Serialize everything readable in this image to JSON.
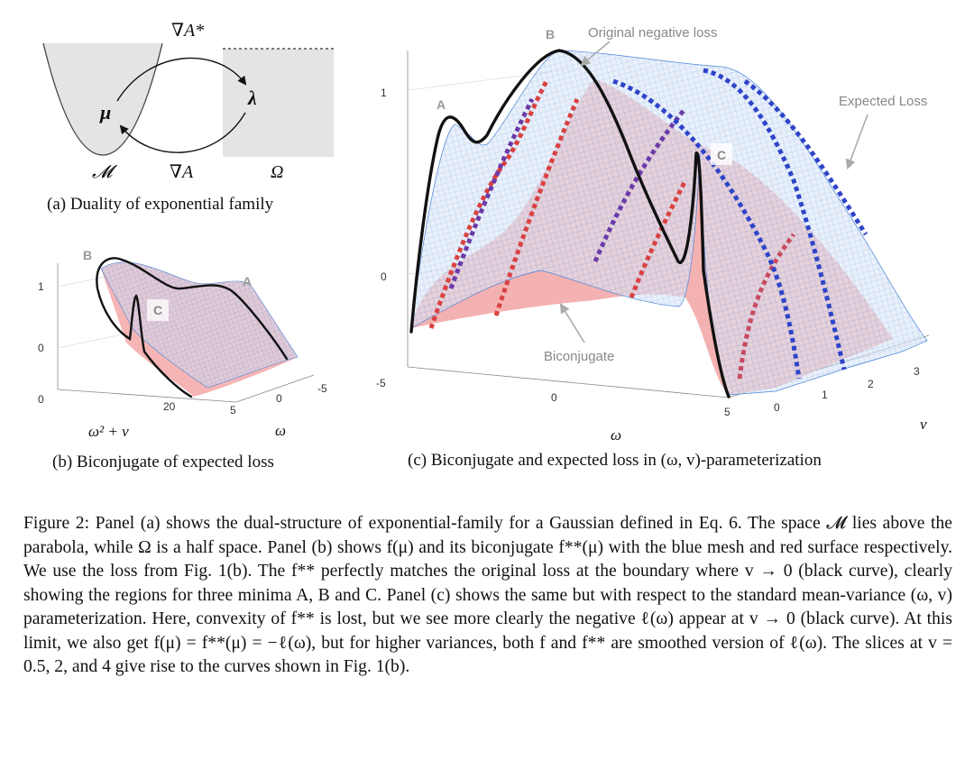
{
  "panel_a": {
    "caption": "(a)  Duality of exponential family",
    "top_label": "∇A*",
    "bottom_label": "∇A",
    "mu_symbol": "μ",
    "lambda_symbol": "λ",
    "set_M": "𝓜",
    "set_Omega": "Ω"
  },
  "panel_b": {
    "caption": "(b)  Biconjugate of expected loss",
    "label_A": "A",
    "label_B": "B",
    "label_C": "C",
    "z_ticks": [
      "1",
      "0"
    ],
    "x_ticks": [
      "0",
      "20"
    ],
    "w_ticks": [
      "-5",
      "0",
      "5"
    ],
    "x_axis_label": "ω² + v",
    "w_axis_label": "ω"
  },
  "panel_c": {
    "caption": "(c)  Biconjugate and expected loss in (ω, v)-parameterization",
    "label_A": "A",
    "label_B": "B",
    "label_C": "C",
    "annotation_original": "Original negative loss",
    "annotation_expected": "Expected Loss",
    "annotation_biconjugate": "Biconjugate",
    "z_ticks": [
      "1",
      "0",
      "-5"
    ],
    "w_ticks": [
      "0",
      "5"
    ],
    "v_ticks": [
      "0",
      "1",
      "2",
      "3"
    ],
    "w_axis_label": "ω",
    "v_axis_label": "v"
  },
  "caption": {
    "label": "Figure 2:",
    "text": "Panel (a) shows the dual-structure of exponential-family for a Gaussian defined in Eq. 6. The space 𝓜 lies above the parabola, while Ω is a half space. Panel (b) shows f(μ) and its biconjugate f**(μ) with the blue mesh and red surface respectively. We use the loss from Fig. 1(b). The f** perfectly matches the original loss at the boundary where v → 0 (black curve), clearly showing the regions for three minima A, B and C. Panel (c) shows the same but with respect to the standard mean-variance (ω, v) parameterization. Here, convexity of f** is lost, but we see more clearly the negative ℓ(ω) appear at v → 0 (black curve). At this limit, we also get f(μ) = f**(μ) = −ℓ(ω), but for higher variances, both f and f** are smoothed version of ℓ(ω). The slices at v = 0.5, 2, and 4 give rise to the curves shown in Fig. 1(b)."
  },
  "colors": {
    "mesh_blue": "#4a86d8",
    "biconjugate_red": "#f2a3a3",
    "slice_red": "#d94141",
    "slice_blue": "#2e44c8",
    "slice_purple": "#6a3aa8",
    "boundary_black": "#111111",
    "region_gray": "#e4e4e4"
  }
}
